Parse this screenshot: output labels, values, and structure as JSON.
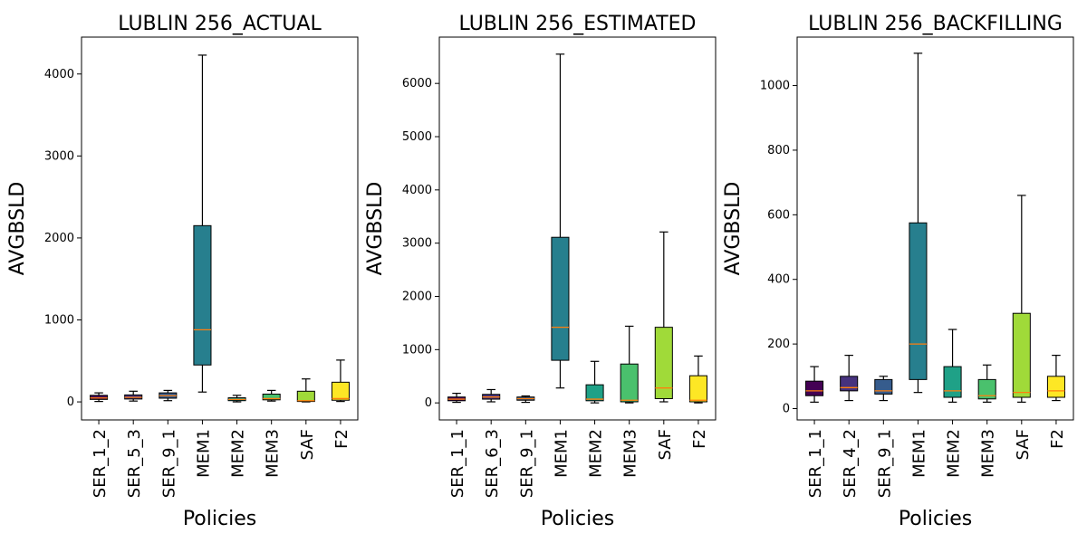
{
  "chart_data": [
    {
      "type": "boxplot",
      "title": "LUBLIN 256_ACTUAL",
      "xlabel": "Policies",
      "ylabel": "AVGBSLD",
      "ylim": [
        -220,
        4450
      ],
      "yticks": [
        0,
        1000,
        2000,
        3000,
        4000
      ],
      "grid": false,
      "categories": [
        "SER_1_2",
        "SER_5_3",
        "SER_9_1",
        "MEM1",
        "MEM2",
        "MEM3",
        "SAF",
        "F2"
      ],
      "colors": [
        "#440154",
        "#46327e",
        "#365c8d",
        "#277f8e",
        "#1fa187",
        "#4ac16d",
        "#a0da39",
        "#fde725"
      ],
      "boxes": [
        {
          "whislo": 5,
          "q1": 30,
          "med": 48,
          "q3": 80,
          "whishi": 110
        },
        {
          "whislo": 10,
          "q1": 35,
          "med": 55,
          "q3": 85,
          "whishi": 130
        },
        {
          "whislo": 15,
          "q1": 45,
          "med": 75,
          "q3": 110,
          "whishi": 140
        },
        {
          "whislo": 120,
          "q1": 450,
          "med": 880,
          "q3": 2150,
          "whishi": 4230
        },
        {
          "whislo": 0,
          "q1": 15,
          "med": 30,
          "q3": 50,
          "whishi": 80
        },
        {
          "whislo": 10,
          "q1": 25,
          "med": 40,
          "q3": 95,
          "whishi": 140
        },
        {
          "whislo": 0,
          "q1": 5,
          "med": 15,
          "q3": 130,
          "whishi": 280
        },
        {
          "whislo": 5,
          "q1": 20,
          "med": 40,
          "q3": 240,
          "whishi": 510
        }
      ]
    },
    {
      "type": "boxplot",
      "title": "LUBLIN 256_ESTIMATED",
      "xlabel": "Policies",
      "ylabel": "AVGBSLD",
      "ylim": [
        -320,
        6870
      ],
      "yticks": [
        0,
        1000,
        2000,
        3000,
        4000,
        5000,
        6000
      ],
      "grid": false,
      "categories": [
        "SER_1_1",
        "SER_6_3",
        "SER_9_1",
        "MEM1",
        "MEM2",
        "MEM3",
        "SAF",
        "F2"
      ],
      "colors": [
        "#440154",
        "#46327e",
        "#365c8d",
        "#277f8e",
        "#1fa187",
        "#4ac16d",
        "#a0da39",
        "#fde725"
      ],
      "boxes": [
        {
          "whislo": 10,
          "q1": 40,
          "med": 70,
          "q3": 110,
          "whishi": 180
        },
        {
          "whislo": 20,
          "q1": 70,
          "med": 110,
          "q3": 160,
          "whishi": 250
        },
        {
          "whislo": 10,
          "q1": 50,
          "med": 80,
          "q3": 110,
          "whishi": 130
        },
        {
          "whislo": 280,
          "q1": 800,
          "med": 1420,
          "q3": 3110,
          "whishi": 6550
        },
        {
          "whislo": 0,
          "q1": 40,
          "med": 70,
          "q3": 340,
          "whishi": 780
        },
        {
          "whislo": 0,
          "q1": 20,
          "med": 50,
          "q3": 730,
          "whishi": 1440
        },
        {
          "whislo": 20,
          "q1": 80,
          "med": 280,
          "q3": 1420,
          "whishi": 3210
        },
        {
          "whislo": 0,
          "q1": 20,
          "med": 50,
          "q3": 510,
          "whishi": 880
        }
      ]
    },
    {
      "type": "boxplot",
      "title": "LUBLIN 256_BACKFILLING",
      "xlabel": "Policies",
      "ylabel": "AVGBSLD",
      "ylim": [
        -35,
        1150
      ],
      "yticks": [
        0,
        200,
        400,
        600,
        800,
        1000
      ],
      "grid": false,
      "categories": [
        "SER_1_1",
        "SER_4_2",
        "SER_9_1",
        "MEM1",
        "MEM2",
        "MEM3",
        "SAF",
        "F2"
      ],
      "colors": [
        "#440154",
        "#46327e",
        "#365c8d",
        "#277f8e",
        "#1fa187",
        "#4ac16d",
        "#a0da39",
        "#fde725"
      ],
      "boxes": [
        {
          "whislo": 20,
          "q1": 40,
          "med": 55,
          "q3": 85,
          "whishi": 130
        },
        {
          "whislo": 25,
          "q1": 55,
          "med": 65,
          "q3": 100,
          "whishi": 165
        },
        {
          "whislo": 25,
          "q1": 45,
          "med": 55,
          "q3": 90,
          "whishi": 100
        },
        {
          "whislo": 50,
          "q1": 90,
          "med": 200,
          "q3": 575,
          "whishi": 1100
        },
        {
          "whislo": 20,
          "q1": 35,
          "med": 55,
          "q3": 130,
          "whishi": 245
        },
        {
          "whislo": 20,
          "q1": 30,
          "med": 40,
          "q3": 90,
          "whishi": 135
        },
        {
          "whislo": 20,
          "q1": 35,
          "med": 50,
          "q3": 295,
          "whishi": 660
        },
        {
          "whislo": 25,
          "q1": 35,
          "med": 55,
          "q3": 100,
          "whishi": 165
        }
      ]
    }
  ]
}
